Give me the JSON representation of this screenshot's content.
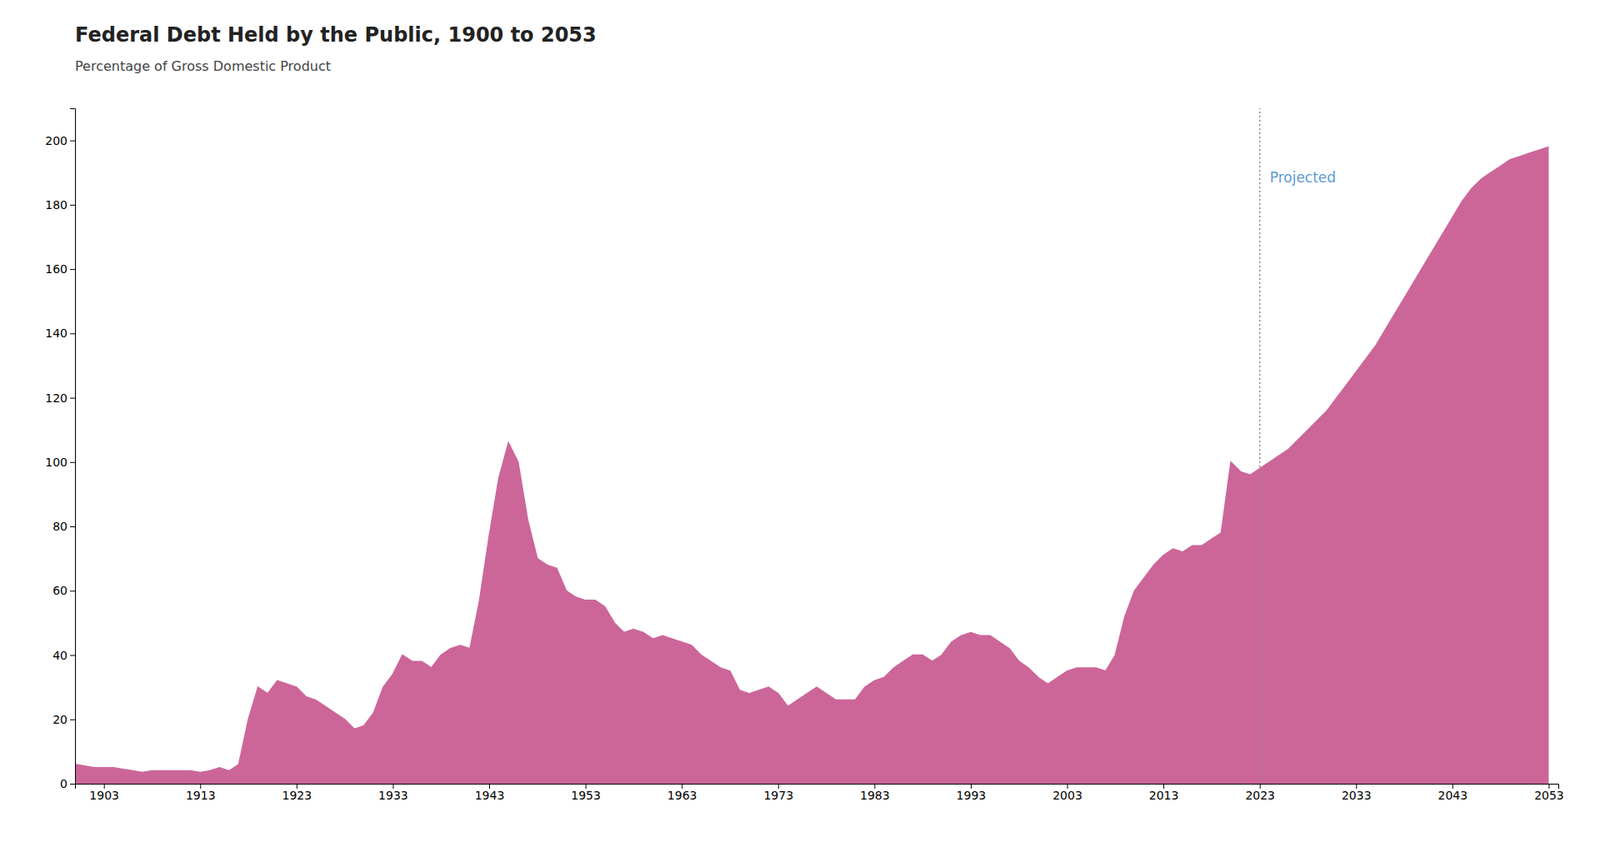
{
  "chart_data": {
    "type": "area",
    "title": "Federal Debt Held by the Public, 1900 to 2053",
    "subtitle": "Percentage of Gross Domestic Product",
    "color": "#cc6699",
    "grid": false,
    "xlim": [
      1900,
      2054
    ],
    "xticks": [
      1903,
      1913,
      1923,
      1933,
      1943,
      1953,
      1963,
      1973,
      1983,
      1993,
      2003,
      2013,
      2023,
      2033,
      2043,
      2053
    ],
    "ylim": [
      0,
      210
    ],
    "yticks": [
      0,
      20,
      40,
      60,
      80,
      100,
      120,
      140,
      160,
      180,
      200
    ],
    "annotations": [
      {
        "type": "vline",
        "x": 2023,
        "color": "#888888"
      },
      {
        "text": "Projected",
        "x": 2023,
        "y": 190,
        "color": "#5b9bd5"
      }
    ],
    "x": [
      1900,
      1901,
      1902,
      1903,
      1904,
      1905,
      1906,
      1907,
      1908,
      1909,
      1910,
      1911,
      1912,
      1913,
      1914,
      1915,
      1916,
      1917,
      1918,
      1919,
      1920,
      1921,
      1922,
      1923,
      1924,
      1925,
      1926,
      1927,
      1928,
      1929,
      1930,
      1931,
      1932,
      1933,
      1934,
      1935,
      1936,
      1937,
      1938,
      1939,
      1940,
      1941,
      1942,
      1943,
      1944,
      1945,
      1946,
      1947,
      1948,
      1949,
      1950,
      1951,
      1952,
      1953,
      1954,
      1955,
      1956,
      1957,
      1958,
      1959,
      1960,
      1961,
      1962,
      1963,
      1964,
      1965,
      1966,
      1967,
      1968,
      1969,
      1970,
      1971,
      1972,
      1973,
      1974,
      1975,
      1976,
      1977,
      1978,
      1979,
      1980,
      1981,
      1982,
      1983,
      1984,
      1985,
      1986,
      1987,
      1988,
      1989,
      1990,
      1991,
      1992,
      1993,
      1994,
      1995,
      1996,
      1997,
      1998,
      1999,
      2000,
      2001,
      2002,
      2003,
      2004,
      2005,
      2006,
      2007,
      2008,
      2009,
      2010,
      2011,
      2012,
      2013,
      2014,
      2015,
      2016,
      2017,
      2018,
      2019,
      2020,
      2021,
      2022,
      2023,
      2024,
      2025,
      2026,
      2027,
      2028,
      2029,
      2030,
      2031,
      2032,
      2033,
      2034,
      2035,
      2036,
      2037,
      2038,
      2039,
      2040,
      2041,
      2042,
      2043,
      2044,
      2045,
      2046,
      2047,
      2048,
      2049,
      2050,
      2051,
      2052,
      2053
    ],
    "values": [
      6.0,
      5.5,
      5.0,
      5.0,
      5.0,
      4.5,
      4.0,
      3.5,
      4.0,
      4.0,
      4.0,
      4.0,
      4.0,
      3.5,
      4.0,
      5.0,
      4.0,
      6.0,
      20.0,
      30.0,
      28.0,
      32.0,
      31.0,
      30.0,
      27.0,
      26.0,
      24.0,
      22.0,
      20.0,
      17.0,
      18.0,
      22.0,
      30.0,
      34.0,
      40.0,
      38.0,
      38.0,
      36.0,
      40.0,
      42.0,
      43.0,
      42.0,
      57.0,
      77.0,
      95.0,
      106.0,
      100.0,
      82.0,
      70.0,
      68.0,
      67.0,
      60.0,
      58.0,
      57.0,
      57.0,
      55.0,
      50.0,
      47.0,
      48.0,
      47.0,
      45.0,
      46.0,
      45.0,
      44.0,
      43.0,
      40.0,
      38.0,
      36.0,
      35.0,
      29.0,
      28.0,
      29.0,
      30.0,
      28.0,
      24.0,
      26.0,
      28.0,
      30.0,
      28.0,
      26.0,
      26.0,
      26.0,
      30.0,
      32.0,
      33.0,
      36.0,
      38.0,
      40.0,
      40.0,
      38.0,
      40.0,
      44.0,
      46.0,
      47.0,
      46.0,
      46.0,
      44.0,
      42.0,
      38.0,
      36.0,
      33.0,
      31.0,
      33.0,
      35.0,
      36.0,
      36.0,
      36.0,
      35.0,
      40.0,
      52.0,
      60.0,
      64.0,
      68.0,
      71.0,
      73.0,
      72.0,
      74.0,
      74.0,
      76.0,
      78.0,
      100.0,
      97.0,
      96.0,
      98.0,
      100.0,
      102.0,
      104.0,
      107.0,
      110.0,
      113.0,
      116.0,
      120.0,
      124.0,
      128.0,
      132.0,
      136.0,
      141.0,
      146.0,
      151.0,
      156.0,
      161.0,
      166.0,
      171.0,
      176.0,
      181.0,
      185.0,
      188.0,
      190.0,
      192.0,
      194.0,
      195.0,
      196.0,
      197.0,
      198.0
    ]
  }
}
